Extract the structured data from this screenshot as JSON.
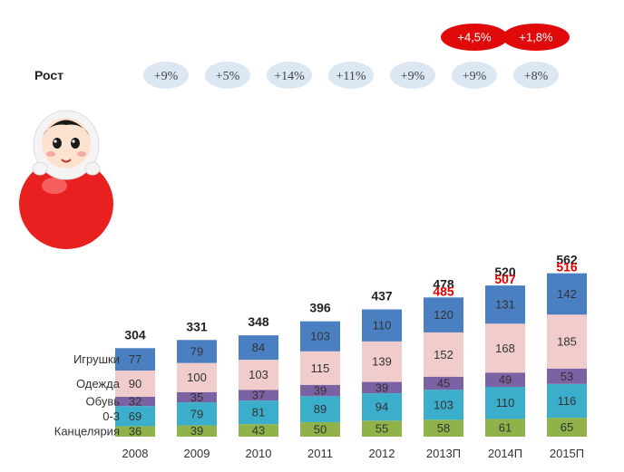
{
  "chart_data": {
    "type": "bar",
    "stacked": true,
    "categories": [
      "2008",
      "2009",
      "2010",
      "2011",
      "2012",
      "2013П",
      "2014П",
      "2015П"
    ],
    "series": [
      {
        "name": "Канцелярия",
        "values": [
          36,
          39,
          43,
          50,
          55,
          58,
          61,
          65
        ],
        "color": "#8fb34a"
      },
      {
        "name": "0-3",
        "values": [
          69,
          79,
          81,
          89,
          94,
          103,
          110,
          116
        ],
        "color": "#3aaecb"
      },
      {
        "name": "Обувь",
        "values": [
          32,
          35,
          37,
          39,
          39,
          45,
          49,
          53
        ],
        "color": "#7b62a3"
      },
      {
        "name": "Одежда",
        "values": [
          90,
          100,
          103,
          115,
          139,
          152,
          168,
          185
        ],
        "color": "#f1cccc"
      },
      {
        "name": "Игрушки",
        "values": [
          77,
          79,
          84,
          103,
          110,
          120,
          131,
          142
        ],
        "color": "#4a80c2"
      }
    ],
    "totals": [
      "304",
      "331",
      "348",
      "396",
      "437",
      "478",
      "520",
      "562"
    ],
    "forecast_totals": [
      null,
      null,
      null,
      null,
      null,
      "485",
      "507",
      "516"
    ],
    "growth_title": "Рост",
    "growth": [
      "+9%",
      "+5%",
      "+14%",
      "+11%",
      "+9%",
      "+9%",
      "+8%"
    ],
    "forecast_growth": [
      "+4,5%",
      "+1,8%"
    ],
    "ylim": [
      0,
      600
    ],
    "legend": "left",
    "grid": false,
    "colors": {
      "forecast": "#e00000",
      "badge": "#e00a0a",
      "growth_bubble": "#dbe8f4"
    }
  }
}
